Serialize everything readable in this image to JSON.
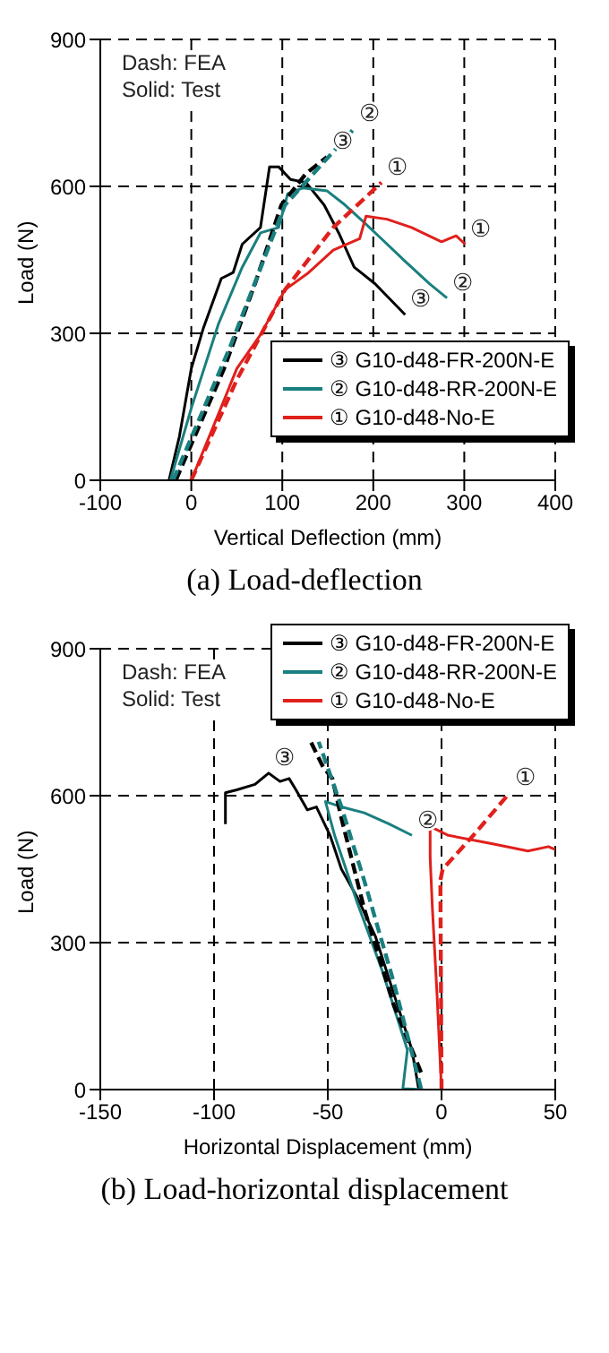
{
  "chart_data": [
    {
      "type": "line",
      "title": "(a) Load-deflection",
      "xlabel": "Vertical Deflection (mm)",
      "ylabel": "Load (N)",
      "xlim": [
        -100,
        400
      ],
      "xticks": [
        -100,
        0,
        100,
        200,
        300,
        400
      ],
      "ylim": [
        0,
        900
      ],
      "yticks": [
        0,
        300,
        600,
        900
      ],
      "grid": true,
      "legend": "bottom right",
      "marker": "none",
      "annotations": [
        "Dash: FEA",
        "Solid: Test",
        {
          "text": "③",
          "x": 149,
          "y": 660
        },
        {
          "text": "③",
          "x": 235,
          "y": 338
        },
        {
          "text": "②",
          "x": 179,
          "y": 718
        },
        {
          "text": "②",
          "x": 281,
          "y": 372
        },
        {
          "text": "①",
          "x": 209,
          "y": 608
        },
        {
          "text": "①",
          "x": 301,
          "y": 482
        }
      ],
      "series": [
        {
          "name": "③ G10-d48-FR-200N-E",
          "color": "#000000",
          "line_style": "solid",
          "x": [
            -24.5,
            -13,
            0,
            13,
            33,
            46,
            56,
            76,
            86,
            96,
            109,
            126,
            146,
            162,
            179,
            202,
            235
          ],
          "values": [
            0,
            90,
            228,
            309,
            412,
            424,
            482,
            516,
            640,
            640,
            614,
            608,
            562,
            505,
            435,
            401,
            338
          ]
        },
        {
          "name": "② G10-d48-RR-200N-E",
          "color": "#1a7f7f",
          "line_style": "solid",
          "x": [
            -23,
            0,
            30,
            56,
            76,
            96,
            106,
            123,
            149,
            169,
            189,
            209,
            235,
            262,
            281
          ],
          "values": [
            0,
            147,
            320,
            435,
            505,
            516,
            585,
            597,
            591,
            562,
            528,
            493,
            447,
            401,
            372
          ]
        },
        {
          "name": "① G10-d48-No-E",
          "color": "#e0201c",
          "line_style": "solid",
          "x": [
            0,
            30,
            50,
            76,
            103,
            129,
            156,
            185,
            192,
            215,
            242,
            275,
            291,
            301
          ],
          "values": [
            0,
            136,
            228,
            297,
            389,
            424,
            470,
            493,
            539,
            533,
            516,
            487,
            499,
            482
          ]
        },
        {
          "color": "#000000",
          "line_style": "dashed",
          "x": [
            -17,
            36,
            70,
            99,
            126,
            149
          ],
          "values": [
            0,
            228,
            401,
            562,
            626,
            660
          ]
        },
        {
          "color": "#1a7f7f",
          "line_style": "dashed",
          "x": [
            -20,
            43,
            103,
            179
          ],
          "values": [
            0,
            274,
            562,
            718
          ]
        },
        {
          "color": "#e0201c",
          "line_style": "dashed",
          "x": [
            0,
            50,
            103,
            156,
            209
          ],
          "values": [
            0,
            205,
            389,
            516,
            608
          ]
        }
      ]
    },
    {
      "type": "line",
      "title": "(b) Load-horizontal displacement",
      "xlabel": "Horizontal Displacement (mm)",
      "ylabel": "Load (N)",
      "xlim": [
        -150,
        50
      ],
      "xticks": [
        -150,
        -100,
        -50,
        0,
        50
      ],
      "ylim": [
        0,
        900
      ],
      "yticks": [
        0,
        300,
        600,
        900
      ],
      "grid": true,
      "legend": "top right",
      "marker": "none",
      "annotations": [
        "Dash: FEA",
        "Solid: Test",
        {
          "text": "③",
          "x": -76,
          "y": 646
        },
        {
          "text": "②",
          "x": -13,
          "y": 519
        },
        {
          "text": "①",
          "x": 30,
          "y": 606
        }
      ],
      "series": [
        {
          "name": "③ G10-d48-FR-200N-E",
          "color": "#000000",
          "line_style": "solid",
          "x": [
            -10,
            -13,
            -21,
            -29,
            -37,
            -44,
            -49,
            -55,
            -59,
            -64,
            -67,
            -71,
            -76,
            -82,
            -90,
            -95,
            -95
          ],
          "values": [
            0,
            81,
            196,
            312,
            392,
            450,
            519,
            577,
            571,
            612,
            635,
            629,
            646,
            623,
            612,
            606,
            542
          ]
        },
        {
          "name": "② G10-d48-RR-200N-E",
          "color": "#1a7f7f",
          "line_style": "solid",
          "x": [
            -8,
            -17,
            -15,
            -26,
            -37,
            -47,
            -51,
            -44,
            -34,
            -23,
            -13
          ],
          "values": [
            0,
            2,
            81,
            242,
            381,
            519,
            588,
            577,
            565,
            542,
            519
          ]
        },
        {
          "name": "① G10-d48-No-E",
          "color": "#e0201c",
          "line_style": "solid",
          "x": [
            0,
            -2,
            -4,
            -5,
            -5,
            3,
            22,
            38,
            47,
            50
          ],
          "values": [
            0,
            196,
            369,
            473,
            537,
            519,
            502,
            487,
            496,
            490
          ]
        },
        {
          "color": "#000000",
          "line_style": "dashed",
          "x": [
            -9,
            -21,
            -34,
            -44,
            -48,
            -52,
            -58
          ],
          "values": [
            35,
            173,
            369,
            554,
            635,
            658,
            715
          ]
        },
        {
          "color": "#1a7f7f",
          "line_style": "dashed",
          "x": [
            -9,
            -21,
            -34,
            -44,
            -54
          ],
          "values": [
            2,
            219,
            427,
            577,
            710
          ]
        },
        {
          "color": "#e0201c",
          "line_style": "dashed",
          "x": [
            0,
            -0.5,
            0.5,
            14,
            30
          ],
          "values": [
            0,
            427,
            450,
            519,
            606
          ]
        }
      ]
    }
  ]
}
